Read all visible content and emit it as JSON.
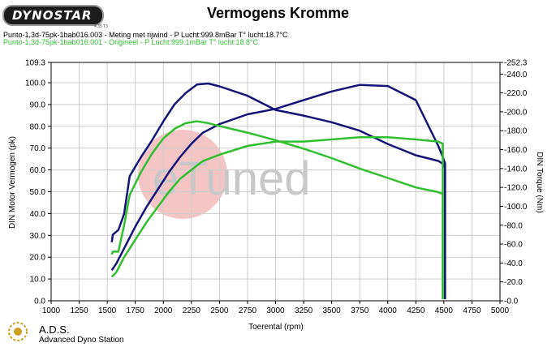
{
  "header": {
    "brand": "DYNOSTAR",
    "brand_sub": "4.35 T3",
    "title": "Vermogens Kromme",
    "runs": [
      {
        "label": "Punto-1,3d-75pk-1bab016.003 - Meting met rijwind  - P Lucht:999.8mBar T° lucht:18.7°C",
        "color": "#000000"
      },
      {
        "label": "Punto-1,3d-75pk-1bab016.001 - Origineel  - P Lucht:999.1mBar T° lucht:18.8°C",
        "color": "#2fbf2f"
      }
    ]
  },
  "watermark": "eTuned",
  "footer": {
    "brand": "A.D.S.",
    "subtitle": "Advanced Dyno Station"
  },
  "colors": {
    "tuned": "#141478",
    "original": "#2fbf2f",
    "grid": "#cccccc"
  },
  "chart_data": {
    "type": "line",
    "xlabel": "Toerental (rpm)",
    "ylabel": "DIN Motor Vermogen (pk)",
    "y2label": "DIN Torque (Nm)",
    "xlim": [
      1000,
      5000
    ],
    "ylim": [
      0,
      109.3
    ],
    "y2lim": [
      0,
      252.3
    ],
    "x_ticks": [
      1000,
      1250,
      1500,
      1750,
      2000,
      2250,
      2500,
      2750,
      3000,
      3250,
      3500,
      3750,
      4000,
      4250,
      4500,
      4750,
      5000
    ],
    "y_ticks": [
      0,
      10,
      20,
      30,
      40,
      50,
      60,
      70,
      80,
      90,
      100,
      109.3
    ],
    "y2_ticks": [
      0,
      20,
      40,
      60,
      80,
      100,
      120,
      140,
      160,
      180,
      200,
      220,
      240,
      252.3
    ],
    "grid": true,
    "series": [
      {
        "name": "Punto-1,3d-75pk-1bab016.003 power",
        "axis": "left",
        "color": "#141478",
        "x": [
          1540,
          1580,
          1650,
          1750,
          1850,
          1950,
          2050,
          2150,
          2250,
          2350,
          2500,
          2750,
          3000,
          3250,
          3500,
          3750,
          4000,
          4250,
          4450,
          4490,
          4510
        ],
        "y": [
          14,
          17,
          24,
          34,
          43,
          51,
          59,
          66,
          72,
          77,
          81,
          85.5,
          88,
          92,
          96,
          99,
          98.5,
          92,
          71,
          66,
          63
        ]
      },
      {
        "name": "Punto-1,3d-75pk-1bab016.003 torque",
        "axis": "right",
        "color": "#141478",
        "x": [
          1540,
          1550,
          1600,
          1650,
          1700,
          1800,
          1900,
          2000,
          2100,
          2200,
          2300,
          2400,
          2500,
          2750,
          3000,
          3250,
          3500,
          3750,
          4000,
          4250,
          4450,
          4490,
          4510
        ],
        "y": [
          62,
          70,
          75,
          92,
          132,
          152,
          170,
          190,
          208,
          220,
          229,
          230,
          227,
          217,
          202,
          196,
          189,
          180,
          166,
          154,
          148,
          145,
          140
        ]
      },
      {
        "name": "Punto-1,3d-75pk-1bab016.001 power",
        "axis": "left",
        "color": "#2fbf2f",
        "x": [
          1540,
          1580,
          1650,
          1750,
          1850,
          1950,
          2050,
          2150,
          2250,
          2350,
          2500,
          2750,
          3000,
          3250,
          3500,
          3750,
          4000,
          4250,
          4450,
          4490
        ],
        "y": [
          11,
          13,
          20,
          28,
          36,
          43,
          50,
          56,
          60,
          64,
          67,
          71,
          73,
          73,
          74,
          75,
          75,
          74,
          73,
          72
        ]
      },
      {
        "name": "Punto-1,3d-75pk-1bab016.001 torque",
        "axis": "right",
        "color": "#2fbf2f",
        "x": [
          1540,
          1550,
          1600,
          1650,
          1700,
          1800,
          1900,
          2000,
          2100,
          2200,
          2300,
          2400,
          2500,
          2750,
          3000,
          3250,
          3500,
          3750,
          4000,
          4250,
          4450,
          4490
        ],
        "y": [
          49,
          52,
          52,
          80,
          112,
          136,
          156,
          172,
          182,
          188,
          190,
          188,
          185,
          178,
          170,
          161,
          151,
          140,
          130,
          120,
          115,
          113
        ]
      }
    ]
  }
}
